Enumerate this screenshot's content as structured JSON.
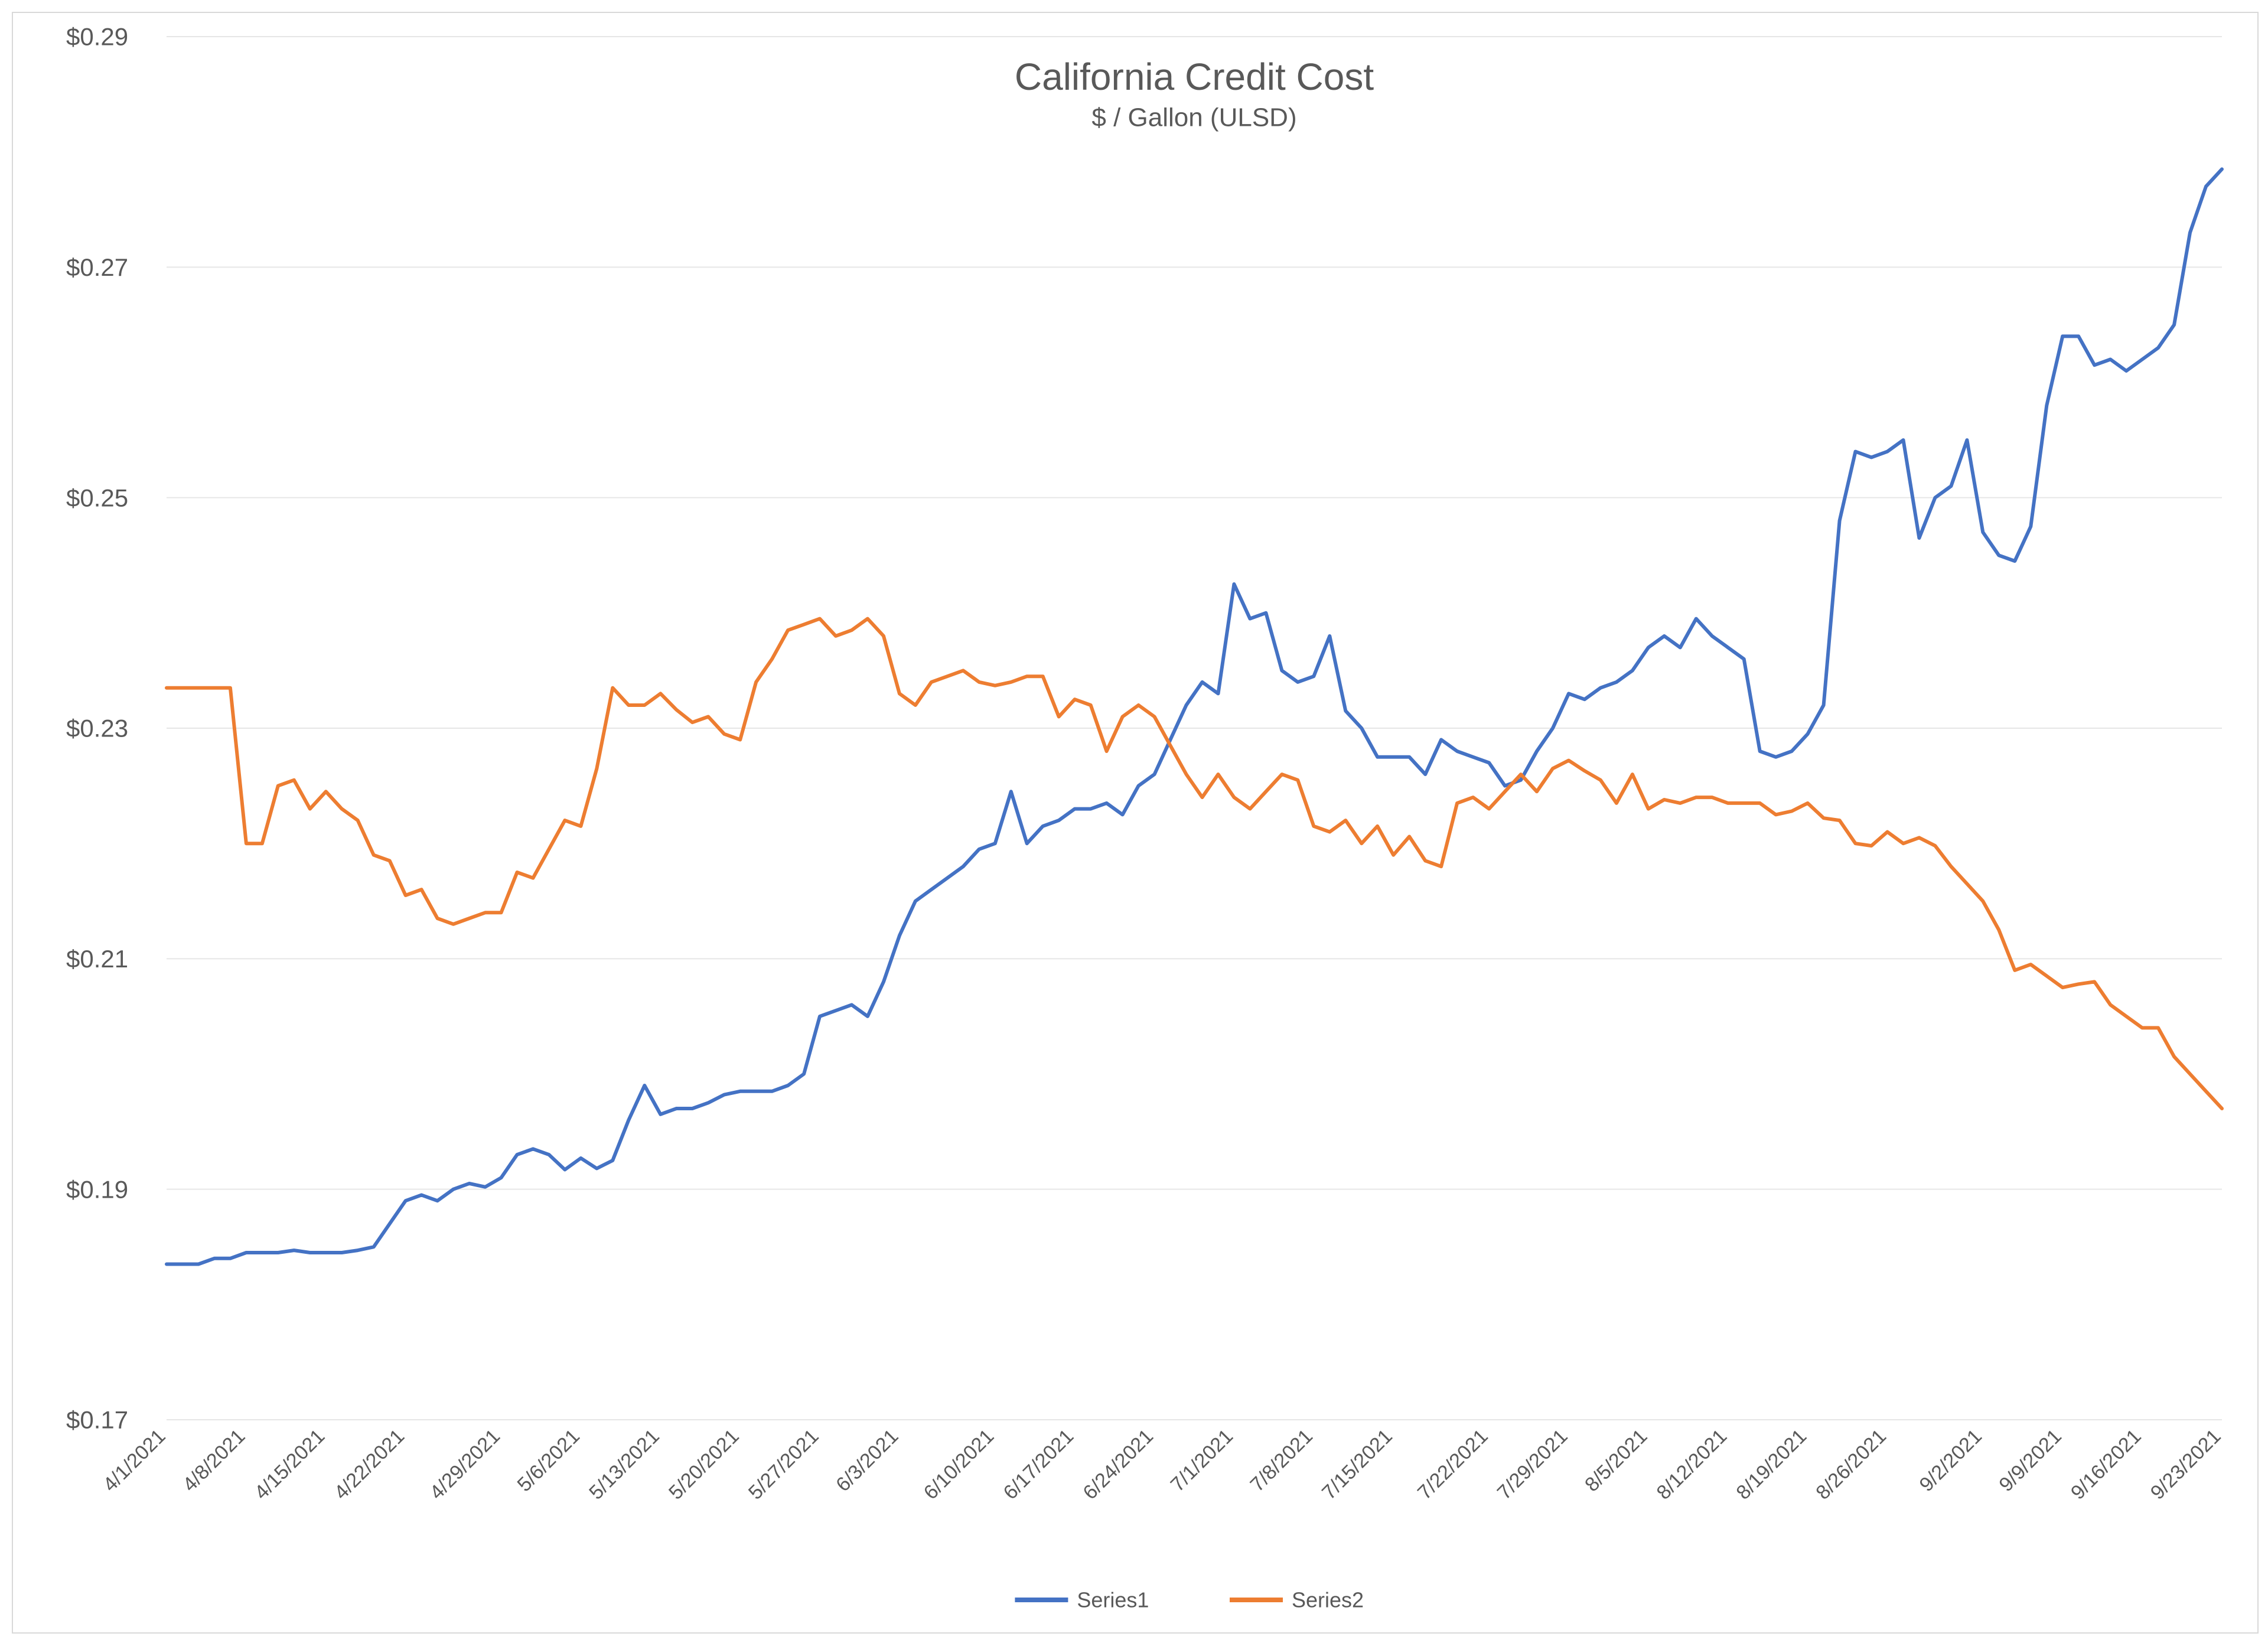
{
  "chart": {
    "type": "line",
    "title": "California Credit Cost",
    "subtitle": "$ / Gallon (ULSD)",
    "title_fontsize": 64,
    "subtitle_fontsize": 44,
    "title_color": "#595959",
    "background_color": "#ffffff",
    "border_color": "#d9d9d9",
    "grid_color": "#e6e6e6",
    "axis_text_color": "#595959",
    "y_axis": {
      "min": 0.17,
      "max": 0.29,
      "tick_step": 0.02,
      "tick_labels": [
        "$0.17",
        "$0.19",
        "$0.21",
        "$0.23",
        "$0.25",
        "$0.27",
        "$0.29"
      ],
      "label_fontsize": 42
    },
    "x_axis": {
      "labels": [
        "4/1/2021",
        "4/8/2021",
        "4/15/2021",
        "4/22/2021",
        "4/29/2021",
        "5/6/2021",
        "5/13/2021",
        "5/20/2021",
        "5/27/2021",
        "6/3/2021",
        "6/10/2021",
        "6/17/2021",
        "6/24/2021",
        "7/1/2021",
        "7/8/2021",
        "7/15/2021",
        "7/22/2021",
        "7/29/2021",
        "8/5/2021",
        "8/12/2021",
        "8/19/2021",
        "8/26/2021",
        "9/2/2021",
        "9/9/2021",
        "9/16/2021",
        "9/23/2021"
      ],
      "label_fontsize": 34,
      "label_rotation": -45
    },
    "legend": {
      "items": [
        "Series1",
        "Series2"
      ],
      "fontsize": 36,
      "position": "bottom"
    },
    "series": [
      {
        "name": "Series1",
        "color": "#4472c4",
        "line_width": 6,
        "values": [
          0.1835,
          0.1835,
          0.1835,
          0.184,
          0.184,
          0.1845,
          0.1845,
          0.1845,
          0.1847,
          0.1845,
          0.1845,
          0.1845,
          0.1847,
          0.185,
          0.187,
          0.189,
          0.1895,
          0.189,
          0.19,
          0.1905,
          0.1902,
          0.191,
          0.193,
          0.1935,
          0.193,
          0.1917,
          0.1927,
          0.1918,
          0.1925,
          0.196,
          0.199,
          0.1965,
          0.197,
          0.197,
          0.1975,
          0.1982,
          0.1985,
          0.1985,
          0.1985,
          0.199,
          0.2,
          0.205,
          0.2055,
          0.206,
          0.205,
          0.208,
          0.212,
          0.215,
          0.216,
          0.217,
          0.218,
          0.2195,
          0.22,
          0.2245,
          0.22,
          0.2215,
          0.222,
          0.223,
          0.223,
          0.2235,
          0.2225,
          0.225,
          0.226,
          0.229,
          0.232,
          0.234,
          0.233,
          0.2425,
          0.2395,
          0.24,
          0.235,
          0.234,
          0.2345,
          0.238,
          0.2315,
          0.23,
          0.2275,
          0.2275,
          0.2275,
          0.226,
          0.229,
          0.228,
          0.2275,
          0.227,
          0.225,
          0.2255,
          0.228,
          0.23,
          0.233,
          0.2325,
          0.2335,
          0.234,
          0.235,
          0.237,
          0.238,
          0.237,
          0.2395,
          0.238,
          0.237,
          0.236,
          0.228,
          0.2275,
          0.228,
          0.2295,
          0.232,
          0.248,
          0.254,
          0.2535,
          0.254,
          0.255,
          0.2465,
          0.25,
          0.251,
          0.255,
          0.247,
          0.245,
          0.2445,
          0.2475,
          0.258,
          0.264,
          0.264,
          0.2615,
          0.262,
          0.261,
          0.262,
          0.263,
          0.265,
          0.273,
          0.277,
          0.2785
        ]
      },
      {
        "name": "Series2",
        "color": "#ed7d31",
        "line_width": 6,
        "values": [
          0.2335,
          0.2335,
          0.2335,
          0.2335,
          0.2335,
          0.22,
          0.22,
          0.225,
          0.2255,
          0.223,
          0.2245,
          0.223,
          0.222,
          0.219,
          0.2185,
          0.2155,
          0.216,
          0.2135,
          0.213,
          0.2135,
          0.214,
          0.214,
          0.2175,
          0.217,
          0.2195,
          0.222,
          0.2215,
          0.2265,
          0.2335,
          0.232,
          0.232,
          0.233,
          0.2316,
          0.2305,
          0.231,
          0.2295,
          0.229,
          0.234,
          0.236,
          0.2385,
          0.239,
          0.2395,
          0.238,
          0.2385,
          0.2395,
          0.238,
          0.233,
          0.232,
          0.234,
          0.2345,
          0.235,
          0.234,
          0.2337,
          0.234,
          0.2345,
          0.2345,
          0.231,
          0.2325,
          0.232,
          0.228,
          0.231,
          0.232,
          0.231,
          0.2285,
          0.226,
          0.224,
          0.226,
          0.224,
          0.223,
          0.2245,
          0.226,
          0.2255,
          0.2215,
          0.221,
          0.222,
          0.22,
          0.2215,
          0.219,
          0.2206,
          0.2185,
          0.218,
          0.2235,
          0.224,
          0.223,
          0.2245,
          0.226,
          0.2245,
          0.2265,
          0.2272,
          0.2263,
          0.2255,
          0.2235,
          0.226,
          0.223,
          0.2238,
          0.2235,
          0.224,
          0.224,
          0.2235,
          0.2235,
          0.2235,
          0.2225,
          0.2228,
          0.2235,
          0.2222,
          0.222,
          0.22,
          0.2198,
          0.221,
          0.22,
          0.2205,
          0.2198,
          0.218,
          0.2165,
          0.215,
          0.2125,
          0.209,
          0.2095,
          0.2085,
          0.2075,
          0.2078,
          0.208,
          0.206,
          0.205,
          0.204,
          0.204,
          0.2015,
          0.2,
          0.1985,
          0.197
        ]
      }
    ]
  }
}
